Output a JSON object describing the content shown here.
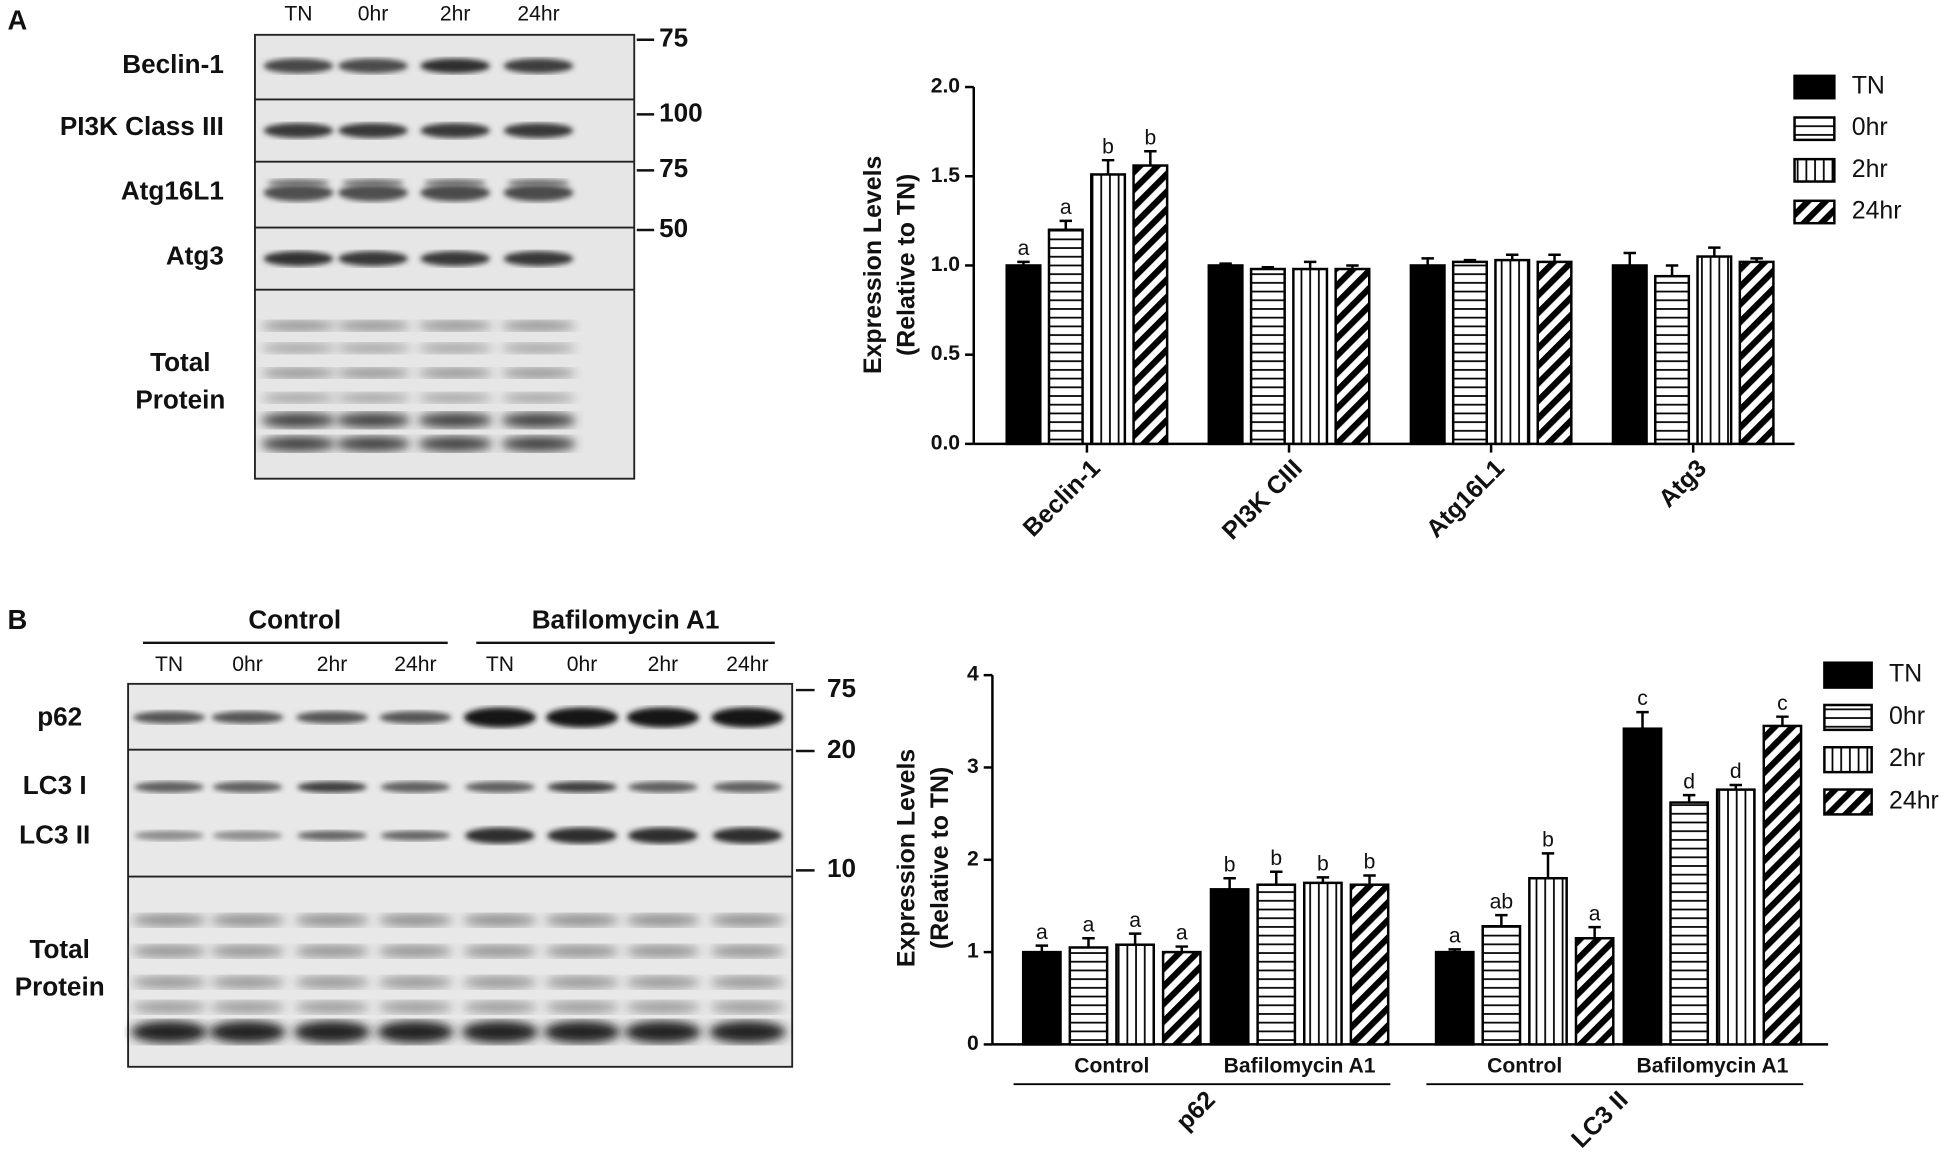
{
  "panels": [
    "A",
    "B"
  ],
  "blots": [
    {
      "lanes": [
        "TN",
        "0hr",
        "2hr",
        "24hr"
      ],
      "rows": [
        "Beclin-1",
        "PI3K Class III",
        "Atg16L1",
        "Atg3",
        [
          "Total",
          "Protein"
        ]
      ],
      "markers": [
        75,
        100,
        75,
        50
      ]
    },
    {
      "groups": [
        {
          "label": "Control",
          "lanes": [
            "TN",
            "0hr",
            "2hr",
            "24hr"
          ]
        },
        {
          "label": "Bafilomycin A1",
          "lanes": [
            "TN",
            "0hr",
            "2hr",
            "24hr"
          ]
        }
      ],
      "rows": [
        "p62",
        "LC3 I",
        "LC3 II",
        [
          "Total",
          "Protein"
        ]
      ],
      "markers": [
        75,
        20,
        10
      ]
    }
  ],
  "chart_data": [
    {
      "type": "bar",
      "y_label": [
        "Expression Levels",
        "(Relative to TN)"
      ],
      "categories": [
        "Beclin-1",
        "PI3K CIII",
        "Atg16L1",
        "Atg3"
      ],
      "ylim": [
        0,
        2
      ],
      "yticks": [
        {
          "value": 0,
          "label": "0.0"
        },
        0.5,
        {
          "value": 1,
          "label": "1.0"
        },
        1.5,
        {
          "value": 2,
          "label": "2.0"
        }
      ],
      "series": [
        {
          "name": "TN",
          "color": "#000000",
          "pattern": "solid",
          "values": [
            1.0,
            1.0,
            1.0,
            1.0
          ],
          "errors": [
            0.02,
            0.01,
            0.04,
            0.07
          ],
          "significance": [
            "a",
            null,
            null,
            null
          ]
        },
        {
          "name": "0hr",
          "color": "#000000",
          "pattern": "horizontal",
          "values": [
            1.2,
            0.98,
            1.02,
            0.94
          ],
          "errors": [
            0.05,
            0.01,
            0.01,
            0.06
          ],
          "significance": [
            "a",
            null,
            null,
            null
          ]
        },
        {
          "name": "2hr",
          "color": "#000000",
          "pattern": "vertical",
          "values": [
            1.51,
            0.98,
            1.03,
            1.05
          ],
          "errors": [
            0.08,
            0.04,
            0.03,
            0.05
          ],
          "significance": [
            "b",
            null,
            null,
            null
          ]
        },
        {
          "name": "24hr",
          "color": "#000000",
          "pattern": "diagonal",
          "values": [
            1.56,
            0.98,
            1.02,
            1.02
          ],
          "errors": [
            0.08,
            0.02,
            0.04,
            0.02
          ],
          "significance": [
            "b",
            null,
            null,
            null
          ]
        }
      ],
      "legend": "upper-right"
    },
    {
      "type": "bar",
      "y_label": [
        "Expression Levels",
        "(Relative to TN)"
      ],
      "groups": [
        {
          "label": "p62",
          "categories": [
            "Control",
            "Bafilomycin A1"
          ]
        },
        {
          "label": "LC3 II",
          "categories": [
            "Control",
            "Bafilomycin A1"
          ]
        }
      ],
      "ylim": [
        0,
        4
      ],
      "yticks": [
        0,
        1,
        2,
        3,
        4
      ],
      "series": [
        {
          "name": "TN",
          "color": "#000000",
          "pattern": "solid",
          "values": [
            1.0,
            1.68,
            1.0,
            3.42
          ],
          "errors": [
            0.07,
            0.12,
            0.03,
            0.18
          ],
          "significance": [
            "a",
            "b",
            "a",
            "c"
          ]
        },
        {
          "name": "0hr",
          "color": "#000000",
          "pattern": "horizontal",
          "values": [
            1.05,
            1.73,
            1.28,
            2.62
          ],
          "errors": [
            0.1,
            0.14,
            0.12,
            0.08
          ],
          "significance": [
            "a",
            "b",
            "ab",
            "d"
          ]
        },
        {
          "name": "2hr",
          "color": "#000000",
          "pattern": "vertical",
          "values": [
            1.08,
            1.75,
            1.8,
            2.76
          ],
          "errors": [
            0.12,
            0.06,
            0.27,
            0.05
          ],
          "significance": [
            "a",
            "b",
            "b",
            "d"
          ]
        },
        {
          "name": "24hr",
          "color": "#000000",
          "pattern": "diagonal",
          "values": [
            1.0,
            1.73,
            1.15,
            3.45
          ],
          "errors": [
            0.06,
            0.1,
            0.12,
            0.1
          ],
          "significance": [
            "a",
            "b",
            "a",
            "c"
          ]
        }
      ],
      "legend": "upper-right"
    }
  ]
}
